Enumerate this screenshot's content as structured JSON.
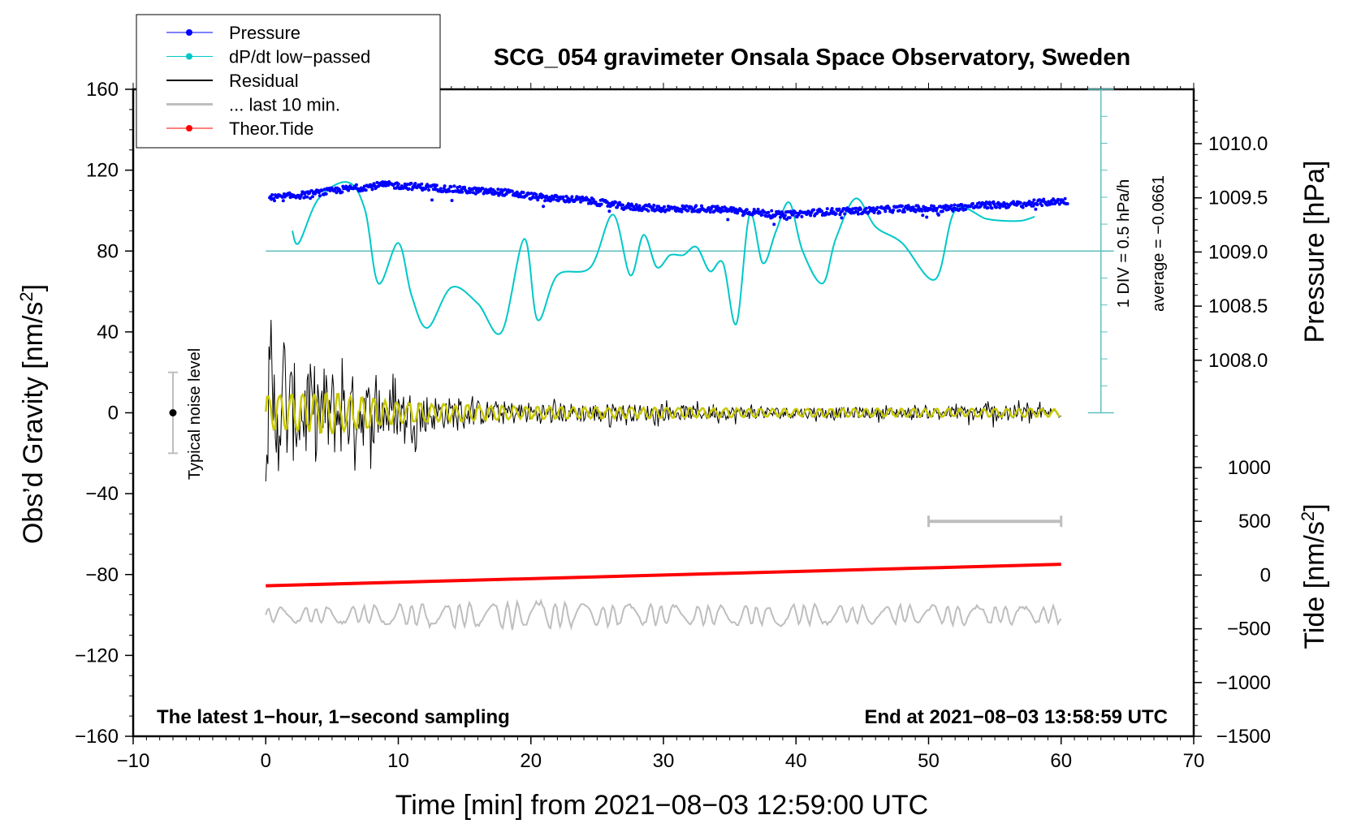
{
  "chart_data": {
    "type": "line",
    "title": "SCG_054 gravimeter Onsala Space Observatory, Sweden",
    "xlabel": "Time [min] from 2021−08−03 12:59:00 UTC",
    "ylabel": "Obs’d Gravity [nm/s²]",
    "ylabel_main": "Obs’d Gravity [nm/s",
    "ylabel_sup": "2",
    "ylabel_close": "]",
    "y2label_pressure": "Pressure [hPa]",
    "y2label_tide": "Tide [nm/s²]",
    "y2label_tide_main": "Tide [nm/s",
    "y2label_tide_sup": "2",
    "y2label_tide_close": "]",
    "xlim": [
      -10,
      70
    ],
    "ylim": [
      -160,
      160
    ],
    "pressure_ylim": [
      1007.5,
      1010.5
    ],
    "tide_ylim": [
      -1500,
      1500
    ],
    "x_ticks": [
      -10,
      0,
      10,
      20,
      30,
      40,
      50,
      60,
      70
    ],
    "x_tick_labels": [
      "−10",
      "0",
      "10",
      "20",
      "30",
      "40",
      "50",
      "60",
      "70"
    ],
    "y_ticks": [
      160,
      120,
      80,
      40,
      0,
      -40,
      -80,
      -120,
      -160
    ],
    "y_tick_labels": [
      "160",
      "120",
      "80",
      "40",
      "0",
      "−40",
      "−80",
      "−120",
      "−160"
    ],
    "pressure_ticks": [
      1010.0,
      1009.5,
      1009.0,
      1008.5,
      1008.0
    ],
    "pressure_tick_labels": [
      "1010.0",
      "1009.5",
      "1009.0",
      "1008.5",
      "1008.0"
    ],
    "tide_ticks": [
      1000,
      500,
      0,
      -500,
      -1000,
      -1500
    ],
    "tide_tick_labels": [
      "1000",
      "500",
      "0",
      "−500",
      "−1000",
      "−1500"
    ],
    "grid": false,
    "legend_position": "top-left",
    "legend": [
      {
        "label": "Pressure",
        "color": "#0000ff",
        "marker": "dot"
      },
      {
        "label": "dP/dt low−passed",
        "color": "#00c8c8",
        "marker": "dot"
      },
      {
        "label": "Residual",
        "color": "#000000",
        "marker": "line"
      },
      {
        "label": "... last 10 min.",
        "color": "#bebebe",
        "marker": "thick-line"
      },
      {
        "label": "Theor.Tide",
        "color": "#ff0000",
        "marker": "dot"
      }
    ],
    "annotations": {
      "sampling_note": "The latest 1−hour, 1−second sampling",
      "end_note": "End at 2021−08−03 13:58:59 UTC",
      "noise_label": "Typical noise level",
      "div_note": "1 DIV = 0.5 hPa/h",
      "average_note": "average = −0.0661"
    },
    "noise_level": {
      "x": -7,
      "center": 0,
      "half_range": 20
    },
    "last_10min_bar": {
      "x_start": 50,
      "x_end": 60,
      "tide_value": 500
    },
    "series": [
      {
        "name": "Pressure",
        "axis": "pressure",
        "color": "#0000ff",
        "x": [
          0.5,
          3,
          6,
          9,
          12,
          15,
          18,
          21,
          24,
          27,
          30,
          33,
          36,
          39,
          42,
          45,
          48,
          51,
          54,
          57,
          60
        ],
        "values": [
          1009.5,
          1009.53,
          1009.58,
          1009.62,
          1009.6,
          1009.57,
          1009.55,
          1009.5,
          1009.48,
          1009.42,
          1009.4,
          1009.4,
          1009.38,
          1009.34,
          1009.37,
          1009.38,
          1009.4,
          1009.4,
          1009.43,
          1009.44,
          1009.47
        ]
      },
      {
        "name": "dP/dt low-passed",
        "axis": "gravity",
        "color": "#00c8c8",
        "x": [
          2,
          2.5,
          4,
          6.2,
          7.5,
          8.5,
          10,
          11,
          12.2,
          14,
          16,
          17.8,
          19.5,
          20.5,
          22,
          24.5,
          26.2,
          27.5,
          28.5,
          29.5,
          30.5,
          31.5,
          32.5,
          33.5,
          34.5,
          35.5,
          36.5,
          37.5,
          38.5,
          39.5,
          40.5,
          42,
          43,
          44.5,
          46,
          48,
          50.5,
          52,
          54.3,
          55.5,
          57,
          58
        ],
        "values": [
          90,
          84,
          106,
          114,
          100,
          64,
          84,
          58,
          42,
          62,
          54,
          40,
          86,
          46,
          68,
          72,
          98,
          68,
          88,
          72,
          78,
          78,
          82,
          70,
          74,
          44,
          98,
          74,
          90,
          104,
          80,
          64,
          86,
          106,
          92,
          84,
          66,
          100,
          96,
          95,
          95,
          97
        ]
      },
      {
        "name": "Residual",
        "axis": "gravity",
        "color": "#000000",
        "envelope_x": [
          0,
          2,
          4,
          6,
          8,
          10,
          15,
          20,
          30,
          40,
          50,
          55,
          60
        ],
        "envelope_amplitude": [
          65,
          45,
          45,
          38,
          28,
          22,
          12,
          10,
          7,
          5,
          5,
          8,
          5
        ]
      },
      {
        "name": "Low-passed residual",
        "axis": "gravity",
        "color": "#c8c800",
        "envelope_x": [
          0,
          5,
          10,
          20,
          40,
          60
        ],
        "envelope_amplitude": [
          8,
          10,
          5,
          3,
          2,
          2
        ]
      },
      {
        "name": "... last 10 min.",
        "axis": "gravity",
        "color": "#bebebe",
        "baseline": -100,
        "envelope_x": [
          0,
          20,
          25,
          60
        ],
        "envelope_amplitude": [
          4,
          8,
          6,
          5
        ]
      },
      {
        "name": "Theor.Tide",
        "axis": "tide",
        "color": "#ff0000",
        "x": [
          0,
          60
        ],
        "values": [
          -100,
          100
        ]
      }
    ]
  }
}
